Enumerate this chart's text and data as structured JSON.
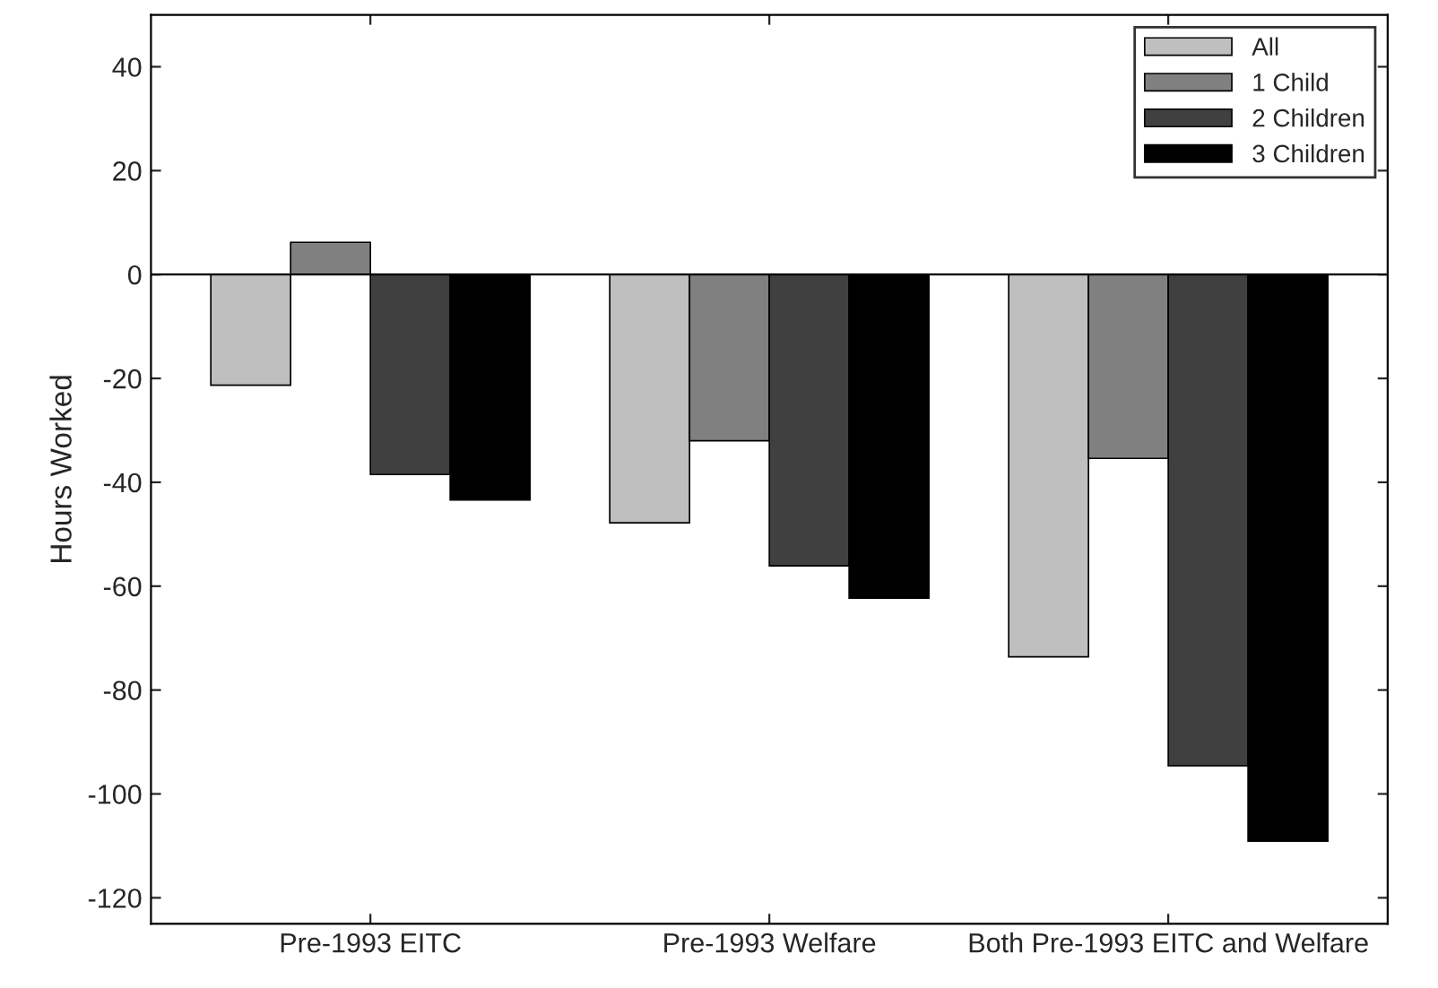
{
  "chart_data": {
    "type": "bar",
    "ylabel": "Hours Worked",
    "categories": [
      "Pre-1993 EITC",
      "Pre-1993 Welfare",
      "Both Pre-1993 EITC and Welfare"
    ],
    "series": [
      {
        "name": "All",
        "color": "#bfbfbf",
        "values": [
          -21.3,
          -47.8,
          -73.6
        ]
      },
      {
        "name": "1 Child",
        "color": "#808080",
        "values": [
          6.2,
          -32,
          -35.4
        ]
      },
      {
        "name": "2 Children",
        "color": "#404040",
        "values": [
          -38.5,
          -56.1,
          -94.6
        ]
      },
      {
        "name": "3 Children",
        "color": "#000000",
        "values": [
          -43.4,
          -62.3,
          -109.1
        ]
      }
    ],
    "ylim": [
      -125,
      50
    ],
    "yticks": [
      -120,
      -100,
      -80,
      -60,
      -40,
      -20,
      0,
      20,
      40
    ],
    "ref_lines": [
      {
        "axis": "y",
        "value": 0
      }
    ],
    "legend": "top right"
  }
}
